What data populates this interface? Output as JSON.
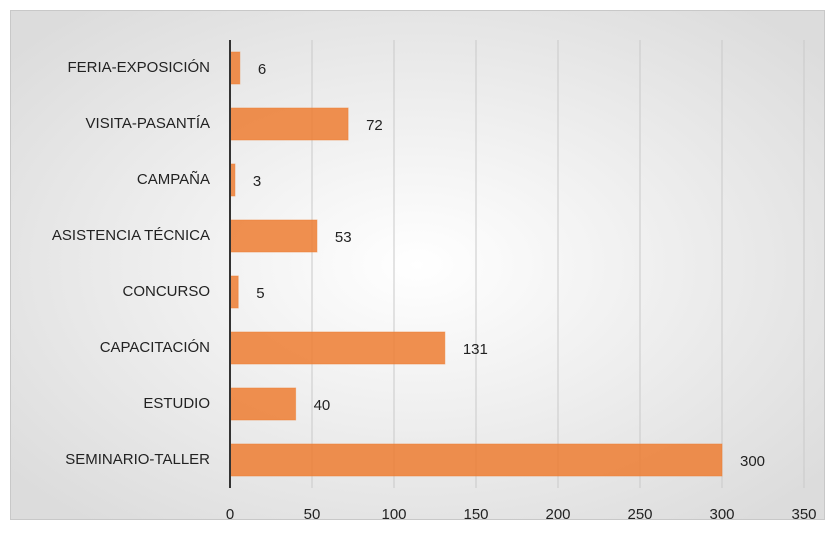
{
  "chart_data": {
    "type": "hbar",
    "categories": [
      "FERIA-EXPOSICIÓN",
      "VISITA-PASANTÍA",
      "CAMPAÑA",
      "ASISTENCIA TÉCNICA",
      "CONCURSO",
      "CAPACITACIÓN",
      "ESTUDIO",
      "SEMINARIO-TALLER"
    ],
    "values": [
      6,
      72,
      3,
      53,
      5,
      131,
      40,
      300
    ],
    "color": "#ed7d31",
    "xlim": [
      0,
      350
    ],
    "xticks": [
      0,
      50,
      100,
      150,
      200,
      250,
      300,
      350
    ],
    "grid": true
  }
}
